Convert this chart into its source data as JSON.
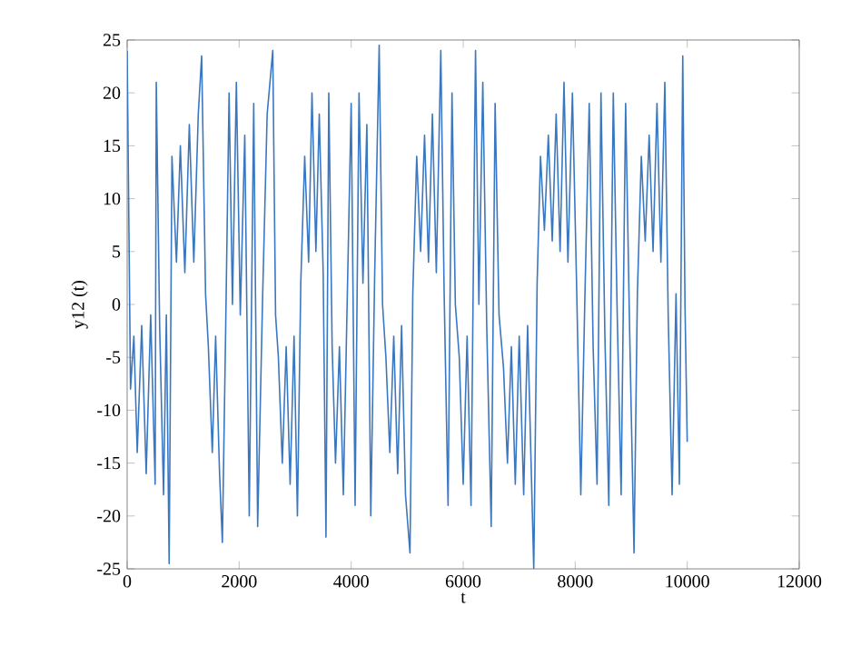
{
  "chart_data": {
    "type": "line",
    "xlabel": "t",
    "ylabel": "y12 (t)",
    "xlim": [
      0,
      12000
    ],
    "ylim": [
      -25,
      25
    ],
    "xticks": [
      0,
      2000,
      4000,
      6000,
      8000,
      10000,
      12000
    ],
    "yticks": [
      -25,
      -20,
      -15,
      -10,
      -5,
      0,
      5,
      10,
      15,
      20,
      25
    ],
    "marker": "none",
    "line_style": "solid",
    "series": [
      {
        "color": "#3a77c1",
        "x": [
          0,
          60,
          120,
          180,
          260,
          340,
          420,
          500,
          520,
          580,
          650,
          700,
          750,
          800,
          880,
          950,
          1030,
          1110,
          1190,
          1270,
          1330,
          1400,
          1450,
          1520,
          1580,
          1650,
          1700,
          1760,
          1820,
          1880,
          1950,
          2020,
          2100,
          2180,
          2260,
          2330,
          2420,
          2500,
          2600,
          2650,
          2700,
          2770,
          2840,
          2910,
          2980,
          3040,
          3100,
          3170,
          3240,
          3300,
          3370,
          3430,
          3500,
          3550,
          3600,
          3660,
          3720,
          3790,
          3860,
          3920,
          4000,
          4070,
          4140,
          4210,
          4280,
          4350,
          4420,
          4500,
          4560,
          4620,
          4690,
          4760,
          4830,
          4900,
          4970,
          5050,
          5100,
          5170,
          5240,
          5310,
          5380,
          5450,
          5520,
          5600,
          5660,
          5730,
          5800,
          5860,
          5930,
          6000,
          6070,
          6140,
          6220,
          6280,
          6350,
          6420,
          6500,
          6570,
          6640,
          6720,
          6790,
          6860,
          6930,
          7000,
          7080,
          7150,
          7260,
          7320,
          7380,
          7450,
          7520,
          7590,
          7660,
          7730,
          7800,
          7870,
          7950,
          8020,
          8100,
          8170,
          8250,
          8320,
          8390,
          8460,
          8530,
          8600,
          8680,
          8750,
          8820,
          8900,
          8970,
          9050,
          9110,
          9180,
          9250,
          9320,
          9390,
          9460,
          9530,
          9600,
          9660,
          9730,
          9800,
          9860,
          9920,
          9960,
          10000
        ],
        "values": [
          24,
          -8,
          -3,
          -14,
          -2,
          -16,
          -1,
          -17,
          21,
          -2,
          -18,
          -1,
          -24.5,
          14,
          4,
          15,
          3,
          17,
          4,
          18,
          23.5,
          1,
          -4,
          -14,
          -3,
          -16,
          -22.5,
          -2,
          20,
          0,
          21,
          -1,
          16,
          -20,
          19,
          -21,
          1,
          18,
          24,
          -1,
          -5,
          -15,
          -4,
          -17,
          -3,
          -20,
          2,
          14,
          4,
          20,
          5,
          18,
          3,
          -22,
          20,
          -4,
          -15,
          -4,
          -18,
          -2,
          19,
          -19,
          20,
          2,
          17,
          -20,
          3,
          24.5,
          0,
          -5,
          -14,
          -3,
          -16,
          -2,
          -18,
          -23.5,
          1,
          14,
          5,
          16,
          4,
          18,
          3,
          24,
          1,
          -19,
          20,
          0,
          -5,
          -17,
          -3,
          -19,
          24,
          0,
          21,
          -2,
          -21,
          19,
          -1,
          -6,
          -15,
          -4,
          -17,
          -3,
          -18,
          -2,
          -25,
          2,
          14,
          7,
          16,
          6,
          18,
          5,
          21,
          4,
          20,
          3,
          -18,
          0,
          19,
          -4,
          -17,
          20,
          -3,
          -19,
          20,
          -1,
          -18,
          19,
          -2,
          -23.5,
          1,
          14,
          6,
          16,
          5,
          19,
          4,
          21,
          -1,
          -18,
          1,
          -17,
          23.5,
          0,
          -13
        ]
      }
    ]
  }
}
